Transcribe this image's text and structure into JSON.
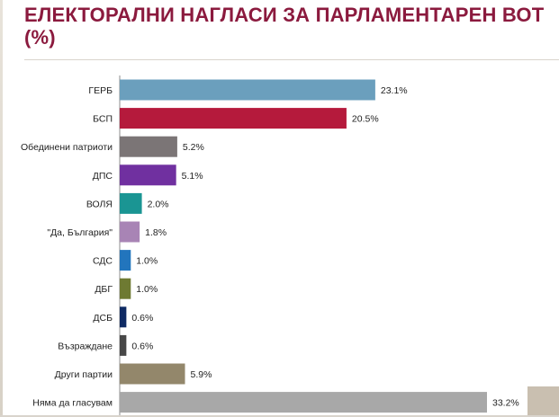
{
  "chart_data": {
    "type": "bar",
    "orientation": "horizontal",
    "title": "ЕЛЕКТОРАЛНИ НАГЛАСИ ЗА ПАРЛАМЕНТАРЕН ВОТ (%)",
    "categories": [
      "ГЕРБ",
      "БСП",
      "Обединени патриоти",
      "ДПС",
      "ВОЛЯ",
      "\"Да, България\"",
      "СДС",
      "ДБГ",
      "ДСБ",
      "Възраждане",
      "Други партии",
      "Няма да гласувам"
    ],
    "values": [
      23.1,
      20.5,
      5.2,
      5.1,
      2.0,
      1.8,
      1.0,
      1.0,
      0.6,
      0.6,
      5.9,
      33.2
    ],
    "value_labels": [
      "23.1%",
      "20.5%",
      "5.2%",
      "5.1%",
      "2.0%",
      "1.8%",
      "1.0%",
      "1.0%",
      "0.6%",
      "0.6%",
      "5.9%",
      "33.2%"
    ],
    "colors": [
      "#6b9fbd",
      "#b51a3c",
      "#7b7576",
      "#7030a0",
      "#1a9593",
      "#a884b5",
      "#2275bd",
      "#6e7a32",
      "#0e2a63",
      "#474747",
      "#93876b",
      "#a8a8a8"
    ],
    "xlim": [
      0,
      33.2
    ],
    "grid": false,
    "legend": "none"
  }
}
